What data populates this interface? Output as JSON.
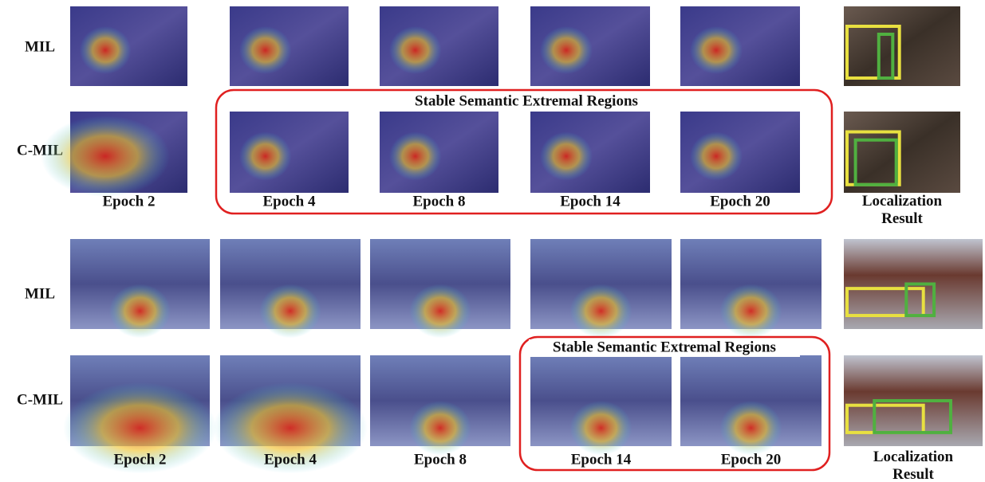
{
  "panels": [
    {
      "rows": [
        "MIL",
        "C-MIL"
      ],
      "epochs": [
        "Epoch 2",
        "Epoch 4",
        "Epoch 8",
        "Epoch 14",
        "Epoch 20"
      ],
      "region_label": "Stable Semantic Extremal Regions",
      "result_label": "Localization Result"
    },
    {
      "rows": [
        "MIL",
        "C-MIL"
      ],
      "epochs": [
        "Epoch 2",
        "Epoch 4",
        "Epoch 8",
        "Epoch 14",
        "Epoch 20"
      ],
      "region_label": "Stable Semantic Extremal Regions",
      "result_label": "Localization Result"
    }
  ]
}
